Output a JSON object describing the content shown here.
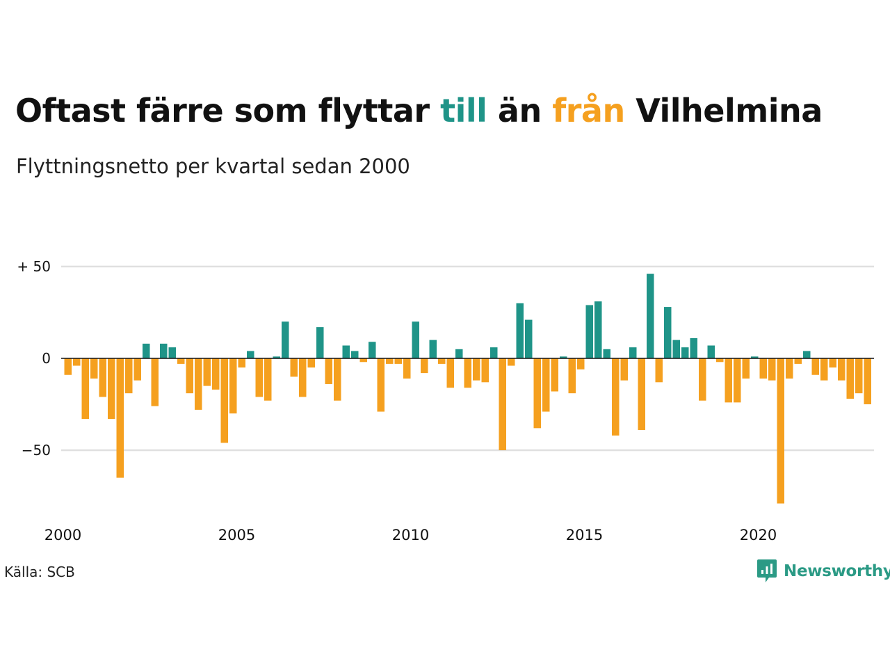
{
  "title": {
    "part1": "Oftast färre som flyttar ",
    "part2": "till",
    "part3": " än ",
    "part4": "från",
    "part5": " Vilhelmina"
  },
  "subtitle": "Flyttningsnetto per kvartal sedan 2000",
  "source": "Källa: SCB",
  "logo": {
    "text": "Newsworthy",
    "icon": "newsworthy-bar-chart-icon"
  },
  "colors": {
    "positive": "#1f9488",
    "negative": "#f5a01f",
    "grid": "#e0e0e0",
    "zero_line": "#111111"
  },
  "chart_data": {
    "type": "bar",
    "frequency": "quarterly",
    "start": "2000 Q1",
    "y_ticks": [
      {
        "value": 50,
        "label": "+ 50"
      },
      {
        "value": 0,
        "label": "0"
      },
      {
        "value": -50,
        "label": "−50"
      }
    ],
    "x_ticks": [
      {
        "value": 2000,
        "label": "2000"
      },
      {
        "value": 2005,
        "label": "2005"
      },
      {
        "value": 2010,
        "label": "2010"
      },
      {
        "value": 2015,
        "label": "2015"
      },
      {
        "value": 2020,
        "label": "2020"
      }
    ],
    "ylim": [
      -80,
      50
    ],
    "grid": true,
    "values": [
      -9,
      -4,
      -33,
      -11,
      -21,
      -33,
      -65,
      -19,
      -12,
      8,
      -26,
      8,
      6,
      -3,
      -19,
      -28,
      -15,
      -17,
      -46,
      -30,
      -5,
      4,
      -21,
      -23,
      1,
      20,
      -10,
      -21,
      -5,
      17,
      -14,
      -23,
      7,
      4,
      -2,
      9,
      -29,
      -3,
      -3,
      -11,
      20,
      -8,
      10,
      -3,
      -16,
      5,
      -16,
      -12,
      -13,
      6,
      -50,
      -4,
      30,
      21,
      -38,
      -29,
      -18,
      1,
      -19,
      -6,
      29,
      31,
      5,
      -42,
      -12,
      6,
      -39,
      46,
      -13,
      28,
      10,
      6,
      11,
      -23,
      7,
      -2,
      -24,
      -24,
      -11,
      1,
      -11,
      -12,
      -79,
      -11,
      -3,
      4,
      -9,
      -12,
      -5,
      -12,
      -22,
      -19,
      -25
    ]
  }
}
